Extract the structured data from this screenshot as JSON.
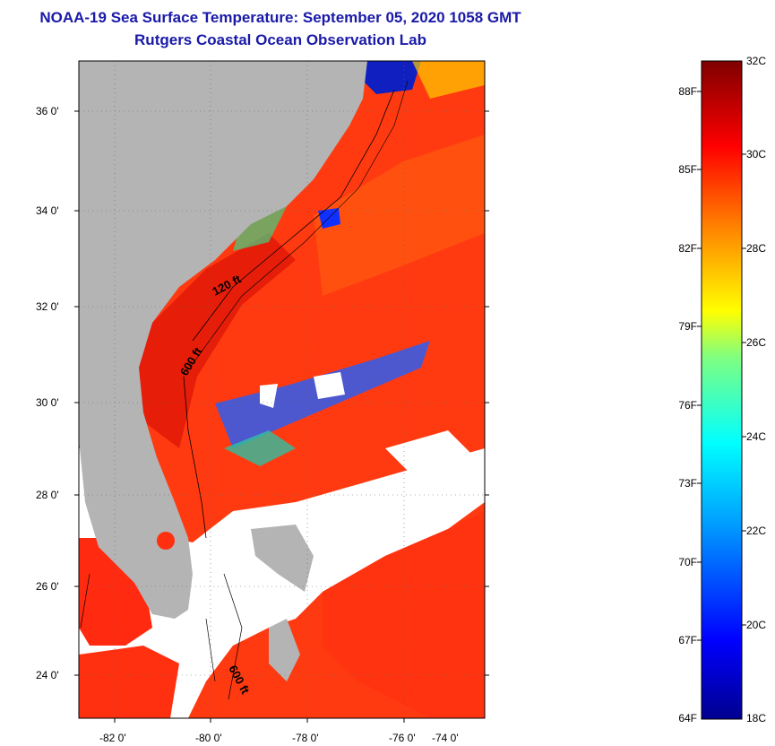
{
  "title_line1": "NOAA-19 Sea Surface Temperature:  September 05, 2020 1058 GMT",
  "title_line2": "Rutgers Coastal Ocean Observation Lab",
  "lat_labels": [
    "36 0'",
    "34 0'",
    "32 0'",
    "30 0'",
    "28 0'",
    "26 0'",
    "24 0'"
  ],
  "lon_labels": [
    "-82 0'",
    "-80 0'",
    "-78 0'",
    "-76 0'",
    "-74 0'"
  ],
  "contour_labels": [
    "120 ft",
    "600 ft",
    "600 ft"
  ],
  "colorbar": {
    "fahrenheit_labels": [
      "88F",
      "85F",
      "82F",
      "79F",
      "76F",
      "73F",
      "70F",
      "67F",
      "64F"
    ],
    "celsius_labels": [
      "32C",
      "30C",
      "28C",
      "26C",
      "24C",
      "22C",
      "20C",
      "18C"
    ],
    "min_c": 18,
    "max_c": 32
  },
  "colors": {
    "title": "#1a1aa8",
    "land": "#b4b4b4",
    "cloud": "#ffffff",
    "warm": "#ff3300"
  }
}
